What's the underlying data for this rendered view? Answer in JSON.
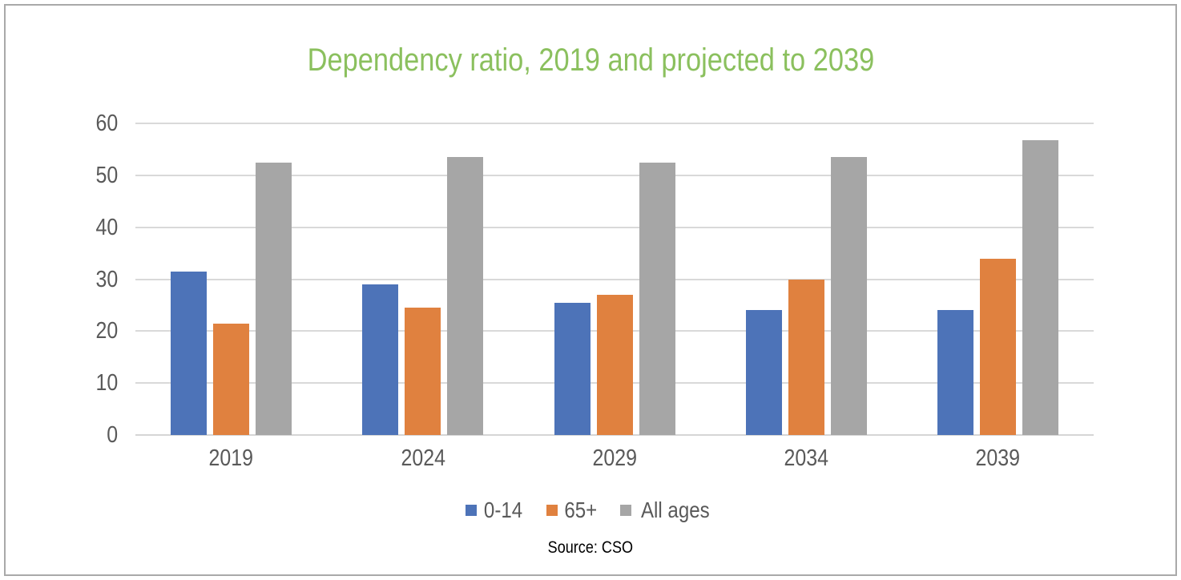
{
  "chart_data": {
    "type": "bar",
    "title": "Dependency ratio, 2019 and projected to 2039",
    "source": "Source: CSO",
    "categories": [
      "2019",
      "2024",
      "2029",
      "2034",
      "2039"
    ],
    "series": [
      {
        "name": "0-14",
        "color": "#4D73B8",
        "values": [
          31.5,
          29.0,
          25.5,
          24.0,
          24.0
        ]
      },
      {
        "name": "65+",
        "color": "#E0813F",
        "values": [
          21.5,
          24.5,
          27.0,
          30.0,
          34.0
        ]
      },
      {
        "name": "All ages",
        "color": "#A6A6A6",
        "values": [
          52.5,
          53.5,
          52.5,
          53.5,
          56.7
        ]
      }
    ],
    "ylim": [
      0,
      60
    ],
    "yticks": [
      0,
      10,
      20,
      30,
      40,
      50,
      60
    ],
    "grid": true,
    "legend_position": "bottom",
    "xlabel": "",
    "ylabel": ""
  },
  "colors": {
    "title": "#8BC05E",
    "axis_labels": "#595959",
    "legend_labels": "#595959",
    "gridline": "#D9D9D9",
    "axis_line": "#D6D6D6",
    "frame_border": "#A9A9A9",
    "source_text": "#000000",
    "series_blue": "#4D73B8",
    "series_orange": "#E0813F",
    "series_gray": "#A6A6A6"
  }
}
